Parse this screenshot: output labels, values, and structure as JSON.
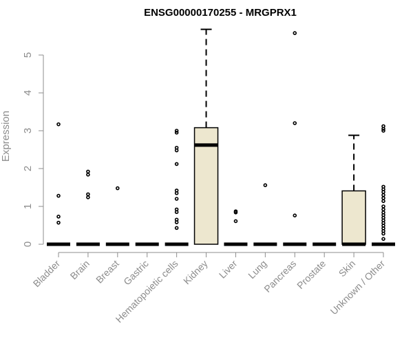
{
  "chart_data": {
    "type": "box",
    "title": "ENSG00000170255 - MRGPRX1",
    "ylabel": "Expression",
    "xlabel": "",
    "ylim": [
      0,
      5.8
    ],
    "yticks": [
      0,
      1,
      2,
      3,
      4,
      5
    ],
    "colors": {
      "box_fill": "#ede7cf",
      "axis": "#8c8c8c",
      "ink": "#000000"
    },
    "categories": [
      {
        "name": "Bladder",
        "median": 0,
        "q1": 0,
        "q3": 0,
        "whisker_low": 0,
        "whisker_high": 0,
        "outliers": [
          3.17,
          1.28,
          0.73,
          0.57
        ]
      },
      {
        "name": "Brain",
        "median": 0,
        "q1": 0,
        "q3": 0,
        "whisker_low": 0,
        "whisker_high": 0,
        "outliers": [
          1.92,
          1.84,
          1.32,
          1.24
        ]
      },
      {
        "name": "Breast",
        "median": 0,
        "q1": 0,
        "q3": 0,
        "whisker_low": 0,
        "whisker_high": 0,
        "outliers": [
          1.48
        ]
      },
      {
        "name": "Gastric",
        "median": 0,
        "q1": 0,
        "q3": 0,
        "whisker_low": 0,
        "whisker_high": 0,
        "outliers": []
      },
      {
        "name": "Hematopoietic cells",
        "median": 0,
        "q1": 0,
        "q3": 0,
        "whisker_low": 0,
        "whisker_high": 0,
        "outliers": [
          3.0,
          2.95,
          2.55,
          2.48,
          2.12,
          1.42,
          1.35,
          1.2,
          0.92,
          0.85,
          0.65,
          0.58,
          0.43
        ]
      },
      {
        "name": "Kidney",
        "median": 2.62,
        "q1": 0,
        "q3": 3.08,
        "whisker_low": 0,
        "whisker_high": 5.68,
        "outliers": []
      },
      {
        "name": "Liver",
        "median": 0,
        "q1": 0,
        "q3": 0,
        "whisker_low": 0,
        "whisker_high": 0,
        "outliers": [
          0.87,
          0.84,
          0.61
        ]
      },
      {
        "name": "Lung",
        "median": 0,
        "q1": 0,
        "q3": 0,
        "whisker_low": 0,
        "whisker_high": 0,
        "outliers": [
          1.56
        ]
      },
      {
        "name": "Pancreas",
        "median": 0,
        "q1": 0,
        "q3": 0,
        "whisker_low": 0,
        "whisker_high": 0,
        "outliers": [
          5.58,
          3.2,
          0.76
        ]
      },
      {
        "name": "Prostate",
        "median": 0,
        "q1": 0,
        "q3": 0,
        "whisker_low": 0,
        "whisker_high": 0,
        "outliers": []
      },
      {
        "name": "Skin",
        "median": 0,
        "q1": 0,
        "q3": 1.41,
        "whisker_low": 0,
        "whisker_high": 2.88,
        "outliers": []
      },
      {
        "name": "Unknown / Other",
        "median": 0,
        "q1": 0,
        "q3": 0,
        "whisker_low": 0,
        "whisker_high": 0,
        "outliers": [
          3.12,
          3.05,
          3.0,
          1.52,
          1.45,
          1.38,
          1.3,
          1.22,
          1.14,
          1.0,
          0.92,
          0.84,
          0.77,
          0.7,
          0.63,
          0.56,
          0.49,
          0.42,
          0.35,
          0.28,
          0.14
        ]
      }
    ]
  }
}
